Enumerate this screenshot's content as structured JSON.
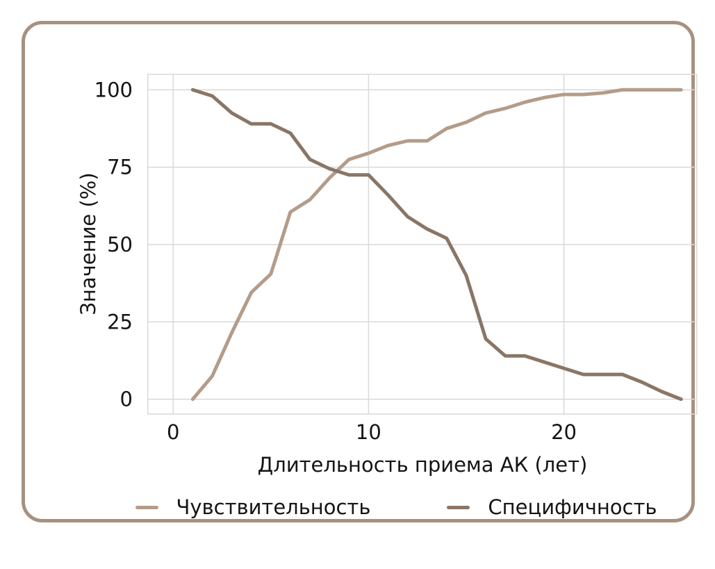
{
  "card": {
    "border_color": "#a8917f",
    "background": "#ffffff"
  },
  "chart_data": {
    "type": "line",
    "title": "",
    "xlabel": "Длительность приема АК (лет)",
    "ylabel": "Значение (%)",
    "x": [
      1,
      2,
      3,
      4,
      5,
      6,
      7,
      8,
      9,
      10,
      11,
      12,
      13,
      14,
      15,
      16,
      17,
      18,
      19,
      20,
      21,
      22,
      23,
      24,
      25,
      26
    ],
    "series": [
      {
        "name": "Чувствительность",
        "color": "#b49c8a",
        "values": [
          0,
          7.5,
          21.5,
          34.5,
          40.5,
          60.5,
          64.5,
          71.5,
          77.5,
          79.5,
          82,
          83.5,
          83.5,
          87.5,
          89.5,
          92.5,
          94,
          96,
          97.5,
          98.5,
          98.5,
          99,
          100,
          100,
          100,
          100
        ]
      },
      {
        "name": "Специфичность",
        "color": "#8a7666",
        "values": [
          100,
          98,
          92.5,
          89,
          89,
          86,
          77.5,
          74.5,
          72.5,
          72.5,
          66,
          59,
          55,
          52,
          40,
          19.5,
          14,
          14,
          12,
          10,
          8,
          8,
          8,
          5.5,
          2.5,
          0
        ]
      }
    ],
    "xticks": [
      0,
      10,
      20
    ],
    "yticks": [
      0,
      25,
      50,
      75,
      100
    ],
    "xlim": [
      -1.3,
      26.8
    ],
    "ylim": [
      -4.8,
      105
    ],
    "grid": true,
    "grid_color": "#d9d9d9",
    "axis_text_color": "#141414",
    "legend_position": "bottom"
  }
}
